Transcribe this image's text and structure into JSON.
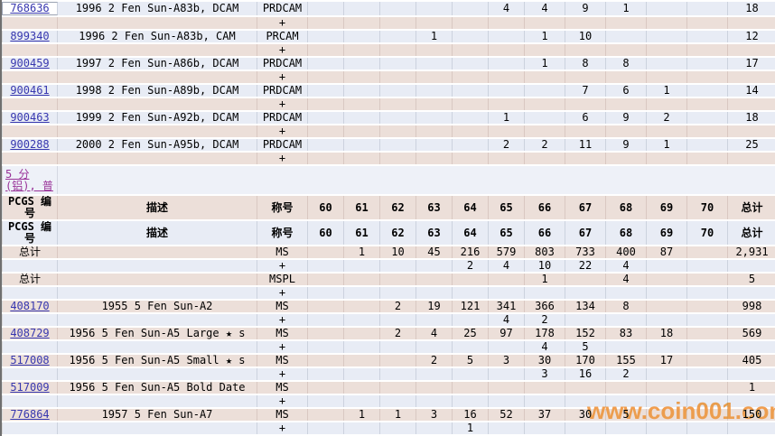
{
  "watermark": "www.coin001.com",
  "plus_sign": "+",
  "totals_label": "总计",
  "section_link": {
    "line1": "5 分",
    "line2": "(铝), 普"
  },
  "headers": {
    "pcgs_no": "PCGS 编号",
    "description": "描述",
    "designation": "称号",
    "grades": [
      "60",
      "61",
      "62",
      "63",
      "64",
      "65",
      "66",
      "67",
      "68",
      "69",
      "70"
    ],
    "total": "总计"
  },
  "colors": {
    "row_blue": "#e8ecf5",
    "row_pink": "#ecdfd9",
    "pcgs_link": "#3737af",
    "section_link": "#993399",
    "watermark_orange": "#f29d4e"
  },
  "top_rows": [
    {
      "pcgs_no": "768636",
      "description": "1996 2 Fen Sun-A83b, DCAM",
      "designation": "PRDCAM",
      "grades": [
        "",
        "",
        "",
        "",
        "",
        "4",
        "4",
        "9",
        "1",
        "",
        ""
      ],
      "total": "18",
      "plus": [
        "",
        "",
        "",
        "",
        "",
        "",
        "",
        "",
        "",
        "",
        ""
      ]
    },
    {
      "pcgs_no": "899340",
      "description": "1996 2 Fen Sun-A83b, CAM",
      "designation": "PRCAM",
      "grades": [
        "",
        "",
        "",
        "1",
        "",
        "",
        "1",
        "10",
        "",
        "",
        ""
      ],
      "total": "12",
      "plus": [
        "",
        "",
        "",
        "",
        "",
        "",
        "",
        "",
        "",
        "",
        ""
      ]
    },
    {
      "pcgs_no": "900459",
      "description": "1997 2 Fen Sun-A86b, DCAM",
      "designation": "PRDCAM",
      "grades": [
        "",
        "",
        "",
        "",
        "",
        "",
        "1",
        "8",
        "8",
        "",
        ""
      ],
      "total": "17",
      "plus": [
        "",
        "",
        "",
        "",
        "",
        "",
        "",
        "",
        "",
        "",
        ""
      ]
    },
    {
      "pcgs_no": "900461",
      "description": "1998 2 Fen Sun-A89b, DCAM",
      "designation": "PRDCAM",
      "grades": [
        "",
        "",
        "",
        "",
        "",
        "",
        "",
        "7",
        "6",
        "1",
        ""
      ],
      "total": "14",
      "plus": [
        "",
        "",
        "",
        "",
        "",
        "",
        "",
        "",
        "",
        "",
        ""
      ]
    },
    {
      "pcgs_no": "900463",
      "description": "1999 2 Fen Sun-A92b, DCAM",
      "designation": "PRDCAM",
      "grades": [
        "",
        "",
        "",
        "",
        "",
        "1",
        "",
        "6",
        "9",
        "2",
        ""
      ],
      "total": "18",
      "plus": [
        "",
        "",
        "",
        "",
        "",
        "",
        "",
        "",
        "",
        "",
        ""
      ]
    },
    {
      "pcgs_no": "900288",
      "description": "2000 2 Fen Sun-A95b, DCAM",
      "designation": "PRDCAM",
      "grades": [
        "",
        "",
        "",
        "",
        "",
        "2",
        "2",
        "11",
        "9",
        "1",
        ""
      ],
      "total": "25",
      "plus": [
        "",
        "",
        "",
        "",
        "",
        "",
        "",
        "",
        "",
        "",
        ""
      ]
    }
  ],
  "summary_rows": [
    {
      "label": "总计",
      "designation": "MS",
      "grades": [
        "",
        "1",
        "10",
        "45",
        "216",
        "579",
        "803",
        "733",
        "400",
        "87",
        ""
      ],
      "total": "2,931",
      "plus": [
        "",
        "",
        "",
        "",
        "2",
        "4",
        "10",
        "22",
        "4",
        "",
        ""
      ]
    },
    {
      "label": "总计",
      "designation": "MSPL",
      "grades": [
        "",
        "",
        "",
        "",
        "",
        "",
        "1",
        "",
        "4",
        "",
        ""
      ],
      "total": "5",
      "plus": [
        "",
        "",
        "",
        "",
        "",
        "",
        "",
        "",
        "",
        "",
        ""
      ]
    }
  ],
  "bottom_rows": [
    {
      "pcgs_no": "408170",
      "description": "1955 5 Fen Sun-A2",
      "designation": "MS",
      "grades": [
        "",
        "",
        "2",
        "19",
        "121",
        "341",
        "366",
        "134",
        "8",
        "",
        ""
      ],
      "total": "998",
      "plus": [
        "",
        "",
        "",
        "",
        "",
        "4",
        "2",
        "",
        "",
        "",
        ""
      ]
    },
    {
      "pcgs_no": "408729",
      "description": "1956 5 Fen Sun-A5 Large ★ s",
      "designation": "MS",
      "grades": [
        "",
        "",
        "2",
        "4",
        "25",
        "97",
        "178",
        "152",
        "83",
        "18",
        ""
      ],
      "total": "569",
      "plus": [
        "",
        "",
        "",
        "",
        "",
        "",
        "4",
        "5",
        "",
        "",
        ""
      ]
    },
    {
      "pcgs_no": "517008",
      "description": "1956 5 Fen Sun-A5 Small ★ s",
      "designation": "MS",
      "grades": [
        "",
        "",
        "",
        "2",
        "5",
        "3",
        "30",
        "170",
        "155",
        "17",
        ""
      ],
      "total": "405",
      "plus": [
        "",
        "",
        "",
        "",
        "",
        "",
        "3",
        "16",
        "2",
        "",
        ""
      ]
    },
    {
      "pcgs_no": "517009",
      "description": "1956 5 Fen Sun-A5 Bold Date",
      "designation": "MS",
      "grades": [
        "",
        "",
        "",
        "",
        "",
        "",
        "",
        "",
        "",
        "",
        ""
      ],
      "total": "1",
      "plus": [
        "",
        "",
        "",
        "",
        "",
        "",
        "",
        "",
        "",
        "",
        ""
      ]
    },
    {
      "pcgs_no": "776864",
      "description": "1957 5 Fen Sun-A7",
      "designation": "MS",
      "grades": [
        "",
        "1",
        "1",
        "3",
        "16",
        "52",
        "37",
        "30",
        "5",
        "",
        ""
      ],
      "total": "150",
      "plus": [
        "",
        "",
        "",
        "",
        "1",
        "",
        "",
        "",
        "",
        "",
        ""
      ]
    }
  ]
}
